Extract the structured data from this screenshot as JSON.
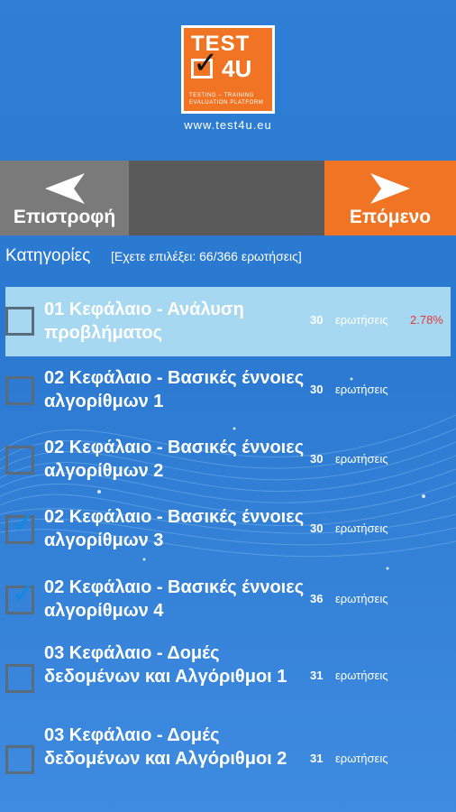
{
  "logo": {
    "line1": "TEST",
    "line2": "4U",
    "tagline1": "TESTING – TRAINING",
    "tagline2": "EVALUATION PLATFORM"
  },
  "site_url": "www.test4u.eu",
  "nav": {
    "back_label": "Επιστροφή",
    "next_label": "Επόμενο",
    "colors": {
      "back": "#7a7a7a",
      "middle": "#5a5a5a",
      "next": "#f07424"
    }
  },
  "categories": {
    "title": "Κατηγορίες",
    "selected_info": "[Εχετε επιλέξει: 66/366 ερωτήσεις]"
  },
  "items": [
    {
      "title": "01 Κεφάλαιο - Ανάλυση προβλήματος",
      "count": "30",
      "unit": "ερωτήσεις",
      "percent": "2.78%",
      "checked": false,
      "highlighted": true
    },
    {
      "title": "02 Κεφάλαιο - Βασικές έννοιες αλγορίθμων 1",
      "count": "30",
      "unit": "ερωτήσεις",
      "percent": "",
      "checked": false,
      "highlighted": false
    },
    {
      "title": "02 Κεφάλαιο - Βασικές έννοιες αλγορίθμων 2",
      "count": "30",
      "unit": "ερωτήσεις",
      "percent": "",
      "checked": false,
      "highlighted": false
    },
    {
      "title": "02 Κεφάλαιο - Βασικές έννοιες αλγορίθμων 3",
      "count": "30",
      "unit": "ερωτήσεις",
      "percent": "",
      "checked": true,
      "highlighted": false
    },
    {
      "title": "02 Κεφάλαιο - Βασικές έννοιες αλγορίθμων 4",
      "count": "36",
      "unit": "ερωτήσεις",
      "percent": "",
      "checked": true,
      "highlighted": false
    },
    {
      "title": "03 Κεφάλαιο - Δομές δεδομένων και Αλγόριθμοι 1",
      "count": "31",
      "unit": "ερωτήσεις",
      "percent": "",
      "checked": false,
      "highlighted": false
    },
    {
      "title": "03 Κεφάλαιο - Δομές δεδομένων και Αλγόριθμοι 2",
      "count": "31",
      "unit": "ερωτήσεις",
      "percent": "",
      "checked": false,
      "highlighted": false
    }
  ]
}
